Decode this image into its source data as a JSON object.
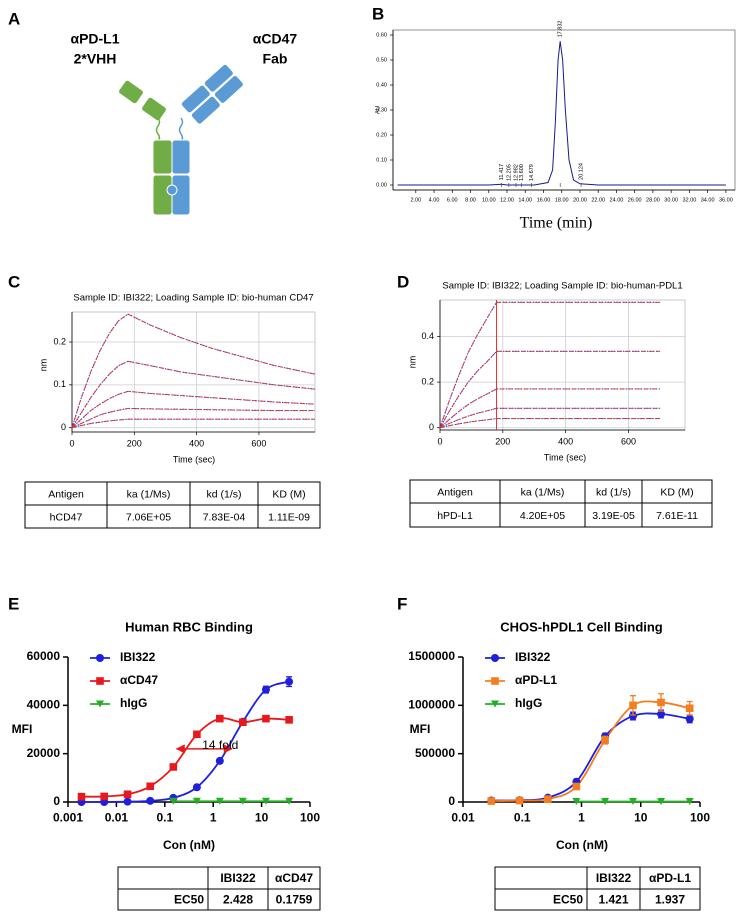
{
  "panel_labels": [
    "A",
    "B",
    "C",
    "D",
    "E",
    "F"
  ],
  "diagram": {
    "left_label": [
      "αPD-L1",
      "2*VHH"
    ],
    "right_label": [
      "αCD47",
      "Fab"
    ]
  },
  "chart_data": [
    {
      "type": "line",
      "xlabel": "Time (min)",
      "ylabel": "AU",
      "xlim": [
        -0.5,
        37
      ],
      "ylim": [
        -0.02,
        0.62
      ],
      "xticks": [
        {
          "value": 2,
          "label": "2.00"
        },
        {
          "value": 4,
          "label": "4.00"
        },
        {
          "value": 6,
          "label": "6.00"
        },
        {
          "value": 8,
          "label": "8.00"
        },
        {
          "value": 10,
          "label": "10.00"
        },
        {
          "value": 12,
          "label": "12.00"
        },
        {
          "value": 14,
          "label": "14.00"
        },
        {
          "value": 16,
          "label": "16.00"
        },
        {
          "value": 18,
          "label": "18.00"
        },
        {
          "value": 20,
          "label": "20.00"
        },
        {
          "value": 22,
          "label": "22.00"
        },
        {
          "value": 24,
          "label": "24.00"
        },
        {
          "value": 26,
          "label": "26.00"
        },
        {
          "value": 28,
          "label": "28.00"
        },
        {
          "value": 30,
          "label": "30.00"
        },
        {
          "value": 32,
          "label": "32.00"
        },
        {
          "value": 34,
          "label": "34.00"
        },
        {
          "value": 36,
          "label": "36.00"
        }
      ],
      "yticks": [
        {
          "value": 0,
          "label": "0.00"
        },
        {
          "value": 0.1,
          "label": "0.10"
        },
        {
          "value": 0.2,
          "label": "0.20"
        },
        {
          "value": 0.3,
          "label": "0.30"
        },
        {
          "value": 0.4,
          "label": "0.40"
        },
        {
          "value": 0.5,
          "label": "0.50"
        },
        {
          "value": 0.6,
          "label": "0.60"
        }
      ],
      "x": [
        0,
        10,
        11.4,
        12,
        15,
        16.5,
        17,
        17.3,
        17.6,
        17.83,
        18.1,
        18.4,
        18.8,
        19.3,
        20,
        22,
        36
      ],
      "series": [
        {
          "color": "#1a1a8c",
          "values": [
            0,
            0,
            0.003,
            0,
            0,
            0.01,
            0.06,
            0.25,
            0.5,
            0.575,
            0.5,
            0.3,
            0.1,
            0.02,
            0.005,
            0,
            0
          ]
        }
      ],
      "peak_labels": [
        {
          "value": 11.417,
          "label": "11.417"
        },
        {
          "value": 12.205,
          "label": "12.205"
        },
        {
          "value": 12.982,
          "label": "12.982"
        },
        {
          "value": 13.6,
          "label": "13.600"
        },
        {
          "value": 14.679,
          "label": "14.679"
        },
        {
          "value": 17.832,
          "label": "17.832"
        },
        {
          "value": 20.124,
          "label": "20.124"
        }
      ]
    },
    {
      "type": "line",
      "title": "Sample ID: IBI322; Loading Sample ID: bio-human CD47",
      "xlabel": "Time (sec)",
      "ylabel": "nm",
      "xlim": [
        0,
        780
      ],
      "ylim": [
        -0.01,
        0.27
      ],
      "xticks": [
        0,
        200,
        400,
        600
      ],
      "yticks": [
        0,
        0.1,
        0.2
      ],
      "grid": true,
      "fit_color": "#e03030",
      "x": [
        0,
        30,
        60,
        90,
        120,
        150,
        180,
        250,
        350,
        450,
        550,
        650,
        780
      ],
      "series": [
        {
          "color": "#3344dd",
          "values": [
            0,
            0.07,
            0.13,
            0.18,
            0.22,
            0.25,
            0.265,
            0.24,
            0.21,
            0.185,
            0.165,
            0.145,
            0.125
          ]
        },
        {
          "color": "#3344dd",
          "values": [
            0,
            0.035,
            0.07,
            0.1,
            0.125,
            0.145,
            0.155,
            0.145,
            0.13,
            0.12,
            0.11,
            0.1,
            0.09
          ]
        },
        {
          "color": "#3344dd",
          "values": [
            0,
            0.02,
            0.04,
            0.055,
            0.068,
            0.078,
            0.085,
            0.08,
            0.075,
            0.07,
            0.065,
            0.06,
            0.055
          ]
        },
        {
          "color": "#3344dd",
          "values": [
            0,
            0.01,
            0.02,
            0.03,
            0.036,
            0.041,
            0.045,
            0.044,
            0.043,
            0.042,
            0.041,
            0.04,
            0.04
          ]
        },
        {
          "color": "#3344dd",
          "values": [
            0,
            0.005,
            0.01,
            0.013,
            0.016,
            0.018,
            0.02,
            0.02,
            0.02,
            0.02,
            0.02,
            0.02,
            0.02
          ]
        }
      ]
    },
    {
      "type": "line",
      "title": "Sample ID: IBI322; Loading Sample ID: bio-human-PDL1",
      "xlabel": "Time (sec)",
      "ylabel": "nm",
      "xlim": [
        0,
        780
      ],
      "ylim": [
        -0.01,
        0.56
      ],
      "xticks": [
        0,
        200,
        400,
        600
      ],
      "yticks": [
        0,
        0.2,
        0.4
      ],
      "grid": true,
      "fit_color": "#e03030",
      "vline": 180,
      "x": [
        0,
        30,
        60,
        90,
        120,
        150,
        180,
        250,
        350,
        450,
        550,
        650,
        700
      ],
      "series": [
        {
          "color": "#3344dd",
          "values": [
            0,
            0.12,
            0.23,
            0.33,
            0.41,
            0.48,
            0.55,
            0.55,
            0.55,
            0.55,
            0.55,
            0.55,
            0.55
          ]
        },
        {
          "color": "#3344dd",
          "values": [
            0,
            0.073,
            0.14,
            0.2,
            0.25,
            0.29,
            0.335,
            0.335,
            0.335,
            0.335,
            0.335,
            0.335,
            0.335
          ]
        },
        {
          "color": "#3344dd",
          "values": [
            0,
            0.037,
            0.071,
            0.102,
            0.127,
            0.148,
            0.17,
            0.17,
            0.17,
            0.17,
            0.17,
            0.17,
            0.17
          ]
        },
        {
          "color": "#3344dd",
          "values": [
            0,
            0.019,
            0.036,
            0.051,
            0.064,
            0.074,
            0.085,
            0.085,
            0.085,
            0.085,
            0.085,
            0.085,
            0.085
          ]
        },
        {
          "color": "#3344dd",
          "values": [
            0,
            0.009,
            0.017,
            0.024,
            0.03,
            0.035,
            0.04,
            0.04,
            0.04,
            0.04,
            0.04,
            0.04,
            0.04
          ]
        }
      ]
    },
    {
      "type": "scatter",
      "title": "Human RBC Binding",
      "xlabel": "Con (nM)",
      "ylabel": "MFI",
      "xscale": "log",
      "legend": "upper-left",
      "xlim": [
        0.001,
        100
      ],
      "ylim": [
        0,
        60000
      ],
      "xticks": [
        0.001,
        0.01,
        0.1,
        1,
        10,
        100
      ],
      "yticks": [
        0,
        20000,
        40000,
        60000
      ],
      "x": [
        0.0019,
        0.0056,
        0.017,
        0.05,
        0.15,
        0.46,
        1.37,
        4.1,
        12.3,
        37
      ],
      "series": [
        {
          "name": "IBI322",
          "color": "#1f1fdc",
          "marker": "circle",
          "values": [
            0,
            0,
            130,
            480,
            1700,
            6100,
            17000,
            33200,
            46500,
            49800
          ],
          "errors": [
            0,
            0,
            0,
            0,
            0,
            300,
            600,
            800,
            1400,
            2000
          ]
        },
        {
          "name": "αCD47",
          "color": "#e8191c",
          "marker": "square",
          "values": [
            2200,
            2300,
            3200,
            6500,
            14500,
            28000,
            34500,
            33000,
            34500,
            34000
          ],
          "errors": [
            0,
            0,
            0,
            300,
            500,
            600,
            700,
            600,
            500,
            500
          ]
        },
        {
          "name": "hIgG",
          "color": "#22b022",
          "marker": "triangle-down",
          "values": [
            null,
            null,
            null,
            null,
            300,
            300,
            300,
            300,
            300,
            300
          ],
          "errors": [
            null,
            null,
            null,
            null,
            0,
            0,
            0,
            0,
            0,
            0
          ]
        }
      ],
      "annotation": {
        "text": "14 fold",
        "y": 22000,
        "color": "#e8191c"
      }
    },
    {
      "type": "scatter",
      "title": "CHOS-hPDL1 Cell Binding",
      "xlabel": "Con (nM)",
      "ylabel": "MFI",
      "xscale": "log",
      "legend": "upper-left",
      "xlim": [
        0.01,
        100
      ],
      "ylim": [
        0,
        1500000
      ],
      "xticks": [
        0.01,
        0.1,
        1,
        10,
        100
      ],
      "yticks": [
        0,
        500000,
        1000000,
        1500000
      ],
      "x": [
        0.03,
        0.09,
        0.27,
        0.82,
        2.5,
        7.4,
        22,
        67
      ],
      "series": [
        {
          "name": "IBI322",
          "color": "#1f1fdc",
          "marker": "circle",
          "values": [
            15000,
            18000,
            45000,
            210000,
            680000,
            890000,
            910000,
            860000
          ],
          "errors": [
            0,
            0,
            0,
            20000,
            30000,
            40000,
            40000,
            40000
          ]
        },
        {
          "name": "αPD-L1",
          "color": "#f57d20",
          "marker": "square",
          "values": [
            10000,
            15000,
            30000,
            160000,
            640000,
            1000000,
            1030000,
            970000
          ],
          "errors": [
            0,
            0,
            0,
            20000,
            40000,
            100000,
            90000,
            70000
          ]
        },
        {
          "name": "hIgG",
          "color": "#22b022",
          "marker": "triangle-down",
          "values": [
            null,
            null,
            null,
            5000,
            5000,
            5000,
            5000,
            5000
          ],
          "errors": [
            null,
            null,
            null,
            0,
            0,
            0,
            0,
            0
          ]
        }
      ]
    }
  ],
  "tables": [
    {
      "header": [
        "Antigen",
        "ka (1/Ms)",
        "kd (1/s)",
        "KD (M)"
      ],
      "rows": [
        [
          "hCD47",
          "7.06E+05",
          "7.83E-04",
          "1.11E-09"
        ]
      ]
    },
    {
      "header": [
        "Antigen",
        "ka (1/Ms)",
        "kd (1/s)",
        "KD (M)"
      ],
      "rows": [
        [
          "hPD-L1",
          "4.20E+05",
          "3.19E-05",
          "7.61E-11"
        ]
      ]
    },
    {
      "header": [
        null,
        "IBI322",
        "αCD47"
      ],
      "rows": [
        [
          "EC50",
          2.428,
          0.1759
        ]
      ]
    },
    {
      "header": [
        null,
        "IBI322",
        "αPD-L1"
      ],
      "rows": [
        [
          "EC50",
          1.421,
          1.937
        ]
      ]
    }
  ]
}
